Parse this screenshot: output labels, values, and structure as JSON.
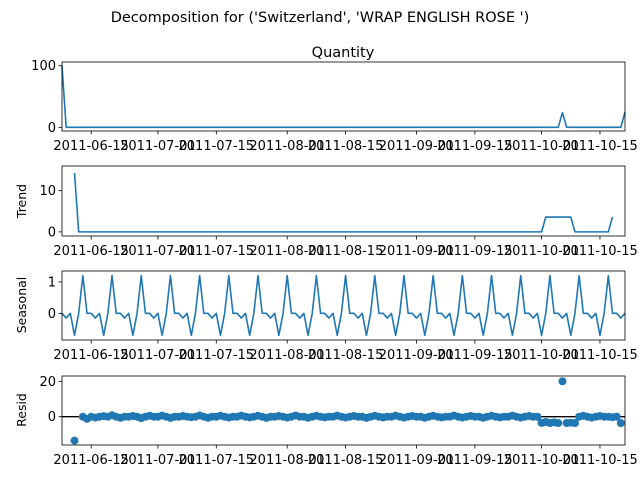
{
  "figure": {
    "suptitle": "Decomposition for ('Switzerland', 'WRAP ENGLISH ROSE ')"
  },
  "colors": {
    "series": "#1f77b4",
    "axis": "#000000"
  },
  "chart_data": [
    {
      "type": "line",
      "title": "Quantity",
      "ylabel": "",
      "xlim": [
        "2011-06-08",
        "2011-10-21"
      ],
      "ylim": [
        -6,
        106
      ],
      "yticks": [
        0,
        100
      ],
      "xticks": [
        "2011-06-15",
        "2011-07-01",
        "2011-07-15",
        "2011-08-01",
        "2011-08-15",
        "2011-09-01",
        "2011-09-15",
        "2011-10-01",
        "2011-10-15"
      ],
      "points": [
        [
          "2011-06-08",
          100
        ],
        [
          "2011-06-09",
          0
        ],
        [
          "2011-10-05",
          0
        ],
        [
          "2011-10-06",
          24
        ],
        [
          "2011-10-07",
          0
        ],
        [
          "2011-10-20",
          0
        ],
        [
          "2011-10-21",
          25
        ]
      ]
    },
    {
      "type": "line",
      "title": "",
      "ylabel": "Trend",
      "xlim": [
        "2011-06-08",
        "2011-10-21"
      ],
      "ylim": [
        -1,
        16
      ],
      "yticks": [
        0,
        10
      ],
      "xticks": [
        "2011-06-15",
        "2011-07-01",
        "2011-07-15",
        "2011-08-01",
        "2011-08-15",
        "2011-09-01",
        "2011-09-15",
        "2011-10-01",
        "2011-10-15"
      ],
      "points": [
        [
          "2011-06-11",
          14.3
        ],
        [
          "2011-06-12",
          0
        ],
        [
          "2011-10-01",
          0
        ],
        [
          "2011-10-02",
          3.6
        ],
        [
          "2011-10-08",
          3.6
        ],
        [
          "2011-10-09",
          0
        ],
        [
          "2011-10-17",
          0
        ],
        [
          "2011-10-18",
          3.6
        ]
      ]
    },
    {
      "type": "line",
      "title": "",
      "ylabel": "Seasonal",
      "xlim": [
        "2011-06-08",
        "2011-10-21"
      ],
      "ylim": [
        -0.85,
        1.35
      ],
      "yticks": [
        0,
        1
      ],
      "xticks": [
        "2011-06-15",
        "2011-07-01",
        "2011-07-15",
        "2011-08-01",
        "2011-08-15",
        "2011-09-01",
        "2011-09-15",
        "2011-10-01",
        "2011-10-15"
      ],
      "start": "2011-06-08",
      "pattern": [
        0,
        -0.15,
        0,
        -0.7,
        0,
        1.2,
        0,
        0,
        -0.15,
        0,
        -0.7,
        0,
        1.2,
        0
      ]
    },
    {
      "type": "scatter",
      "title": "",
      "ylabel": "Resid",
      "xlim": [
        "2011-06-08",
        "2011-10-21"
      ],
      "ylim": [
        -16,
        23
      ],
      "yticks": [
        0,
        20
      ],
      "hline": 0,
      "xticks": [
        "2011-06-15",
        "2011-07-01",
        "2011-07-15",
        "2011-08-01",
        "2011-08-15",
        "2011-09-01",
        "2011-09-15",
        "2011-10-01",
        "2011-10-15"
      ],
      "points": [
        [
          "2011-06-11",
          -13.5
        ],
        [
          "2011-06-13",
          0
        ],
        [
          "2011-06-14",
          -1.2
        ],
        [
          "2011-06-15",
          0
        ],
        [
          "2011-06-16",
          -0.5
        ],
        [
          "2011-06-17",
          0
        ],
        [
          "2011-06-18",
          0.3
        ],
        [
          "2011-06-19",
          0
        ],
        [
          "2011-06-20",
          0.8
        ],
        [
          "2011-06-21",
          0
        ],
        [
          "2011-06-22",
          -0.6
        ],
        [
          "2011-06-23",
          0
        ],
        [
          "2011-06-24",
          0
        ],
        [
          "2011-06-25",
          0.4
        ],
        [
          "2011-06-26",
          0
        ],
        [
          "2011-06-27",
          -0.8
        ],
        [
          "2011-06-28",
          0
        ],
        [
          "2011-06-29",
          0.5
        ],
        [
          "2011-06-30",
          0
        ],
        [
          "2011-07-01",
          0
        ],
        [
          "2011-07-02",
          0.6
        ],
        [
          "2011-07-03",
          0
        ],
        [
          "2011-07-04",
          -0.7
        ],
        [
          "2011-07-05",
          0
        ],
        [
          "2011-07-06",
          0
        ],
        [
          "2011-07-07",
          0.4
        ],
        [
          "2011-07-08",
          0
        ],
        [
          "2011-07-09",
          -0.3
        ],
        [
          "2011-07-10",
          0
        ],
        [
          "2011-07-11",
          0.7
        ],
        [
          "2011-07-12",
          0
        ],
        [
          "2011-07-13",
          -0.6
        ],
        [
          "2011-07-14",
          0
        ],
        [
          "2011-07-15",
          0
        ],
        [
          "2011-07-16",
          0.5
        ],
        [
          "2011-07-17",
          0
        ],
        [
          "2011-07-18",
          -0.5
        ],
        [
          "2011-07-19",
          0
        ],
        [
          "2011-07-20",
          0
        ],
        [
          "2011-07-21",
          0.6
        ],
        [
          "2011-07-22",
          0
        ],
        [
          "2011-07-23",
          -0.4
        ],
        [
          "2011-07-24",
          0
        ],
        [
          "2011-07-25",
          0.5
        ],
        [
          "2011-07-26",
          0
        ],
        [
          "2011-07-27",
          -0.7
        ],
        [
          "2011-07-28",
          0
        ],
        [
          "2011-07-29",
          0
        ],
        [
          "2011-07-30",
          0.4
        ],
        [
          "2011-07-31",
          0
        ],
        [
          "2011-08-01",
          -0.5
        ],
        [
          "2011-08-02",
          0
        ],
        [
          "2011-08-03",
          0.7
        ],
        [
          "2011-08-04",
          0
        ],
        [
          "2011-08-05",
          0
        ],
        [
          "2011-08-06",
          -0.6
        ],
        [
          "2011-08-07",
          0
        ],
        [
          "2011-08-08",
          0.5
        ],
        [
          "2011-08-09",
          0
        ],
        [
          "2011-08-10",
          -0.4
        ],
        [
          "2011-08-11",
          0
        ],
        [
          "2011-08-12",
          0
        ],
        [
          "2011-08-13",
          0.6
        ],
        [
          "2011-08-14",
          0
        ],
        [
          "2011-08-15",
          -0.5
        ],
        [
          "2011-08-16",
          0
        ],
        [
          "2011-08-17",
          0.4
        ],
        [
          "2011-08-18",
          0
        ],
        [
          "2011-08-19",
          0
        ],
        [
          "2011-08-20",
          -0.7
        ],
        [
          "2011-08-21",
          0
        ],
        [
          "2011-08-22",
          0.5
        ],
        [
          "2011-08-23",
          0
        ],
        [
          "2011-08-24",
          -0.4
        ],
        [
          "2011-08-25",
          0
        ],
        [
          "2011-08-26",
          0
        ],
        [
          "2011-08-27",
          0.6
        ],
        [
          "2011-08-28",
          0
        ],
        [
          "2011-08-29",
          -0.5
        ],
        [
          "2011-08-30",
          0
        ],
        [
          "2011-08-31",
          0.4
        ],
        [
          "2011-09-01",
          0
        ],
        [
          "2011-09-02",
          0
        ],
        [
          "2011-09-03",
          -0.6
        ],
        [
          "2011-09-04",
          0
        ],
        [
          "2011-09-05",
          0.5
        ],
        [
          "2011-09-06",
          0
        ],
        [
          "2011-09-07",
          -0.4
        ],
        [
          "2011-09-08",
          0
        ],
        [
          "2011-09-09",
          0
        ],
        [
          "2011-09-10",
          0.6
        ],
        [
          "2011-09-11",
          0
        ],
        [
          "2011-09-12",
          -0.5
        ],
        [
          "2011-09-13",
          0
        ],
        [
          "2011-09-14",
          0.4
        ],
        [
          "2011-09-15",
          0
        ],
        [
          "2011-09-16",
          0
        ],
        [
          "2011-09-17",
          -0.6
        ],
        [
          "2011-09-18",
          0
        ],
        [
          "2011-09-19",
          0.5
        ],
        [
          "2011-09-20",
          0
        ],
        [
          "2011-09-21",
          -0.4
        ],
        [
          "2011-09-22",
          0
        ],
        [
          "2011-09-23",
          0
        ],
        [
          "2011-09-24",
          0.6
        ],
        [
          "2011-09-25",
          0
        ],
        [
          "2011-09-26",
          -0.5
        ],
        [
          "2011-09-27",
          0
        ],
        [
          "2011-09-28",
          0.4
        ],
        [
          "2011-09-29",
          0
        ],
        [
          "2011-09-30",
          0
        ],
        [
          "2011-10-01",
          -3.5
        ],
        [
          "2011-10-02",
          -3
        ],
        [
          "2011-10-03",
          -3.6
        ],
        [
          "2011-10-04",
          -3.2
        ],
        [
          "2011-10-05",
          -3.6
        ],
        [
          "2011-10-06",
          20
        ],
        [
          "2011-10-07",
          -3.6
        ],
        [
          "2011-10-08",
          -3.4
        ],
        [
          "2011-10-09",
          -3.6
        ],
        [
          "2011-10-10",
          0
        ],
        [
          "2011-10-11",
          0.5
        ],
        [
          "2011-10-12",
          0
        ],
        [
          "2011-10-13",
          -0.5
        ],
        [
          "2011-10-14",
          0
        ],
        [
          "2011-10-15",
          0.4
        ],
        [
          "2011-10-16",
          0
        ],
        [
          "2011-10-17",
          0
        ],
        [
          "2011-10-18",
          -0.3
        ],
        [
          "2011-10-19",
          0
        ],
        [
          "2011-10-20",
          -3.6
        ]
      ]
    }
  ]
}
